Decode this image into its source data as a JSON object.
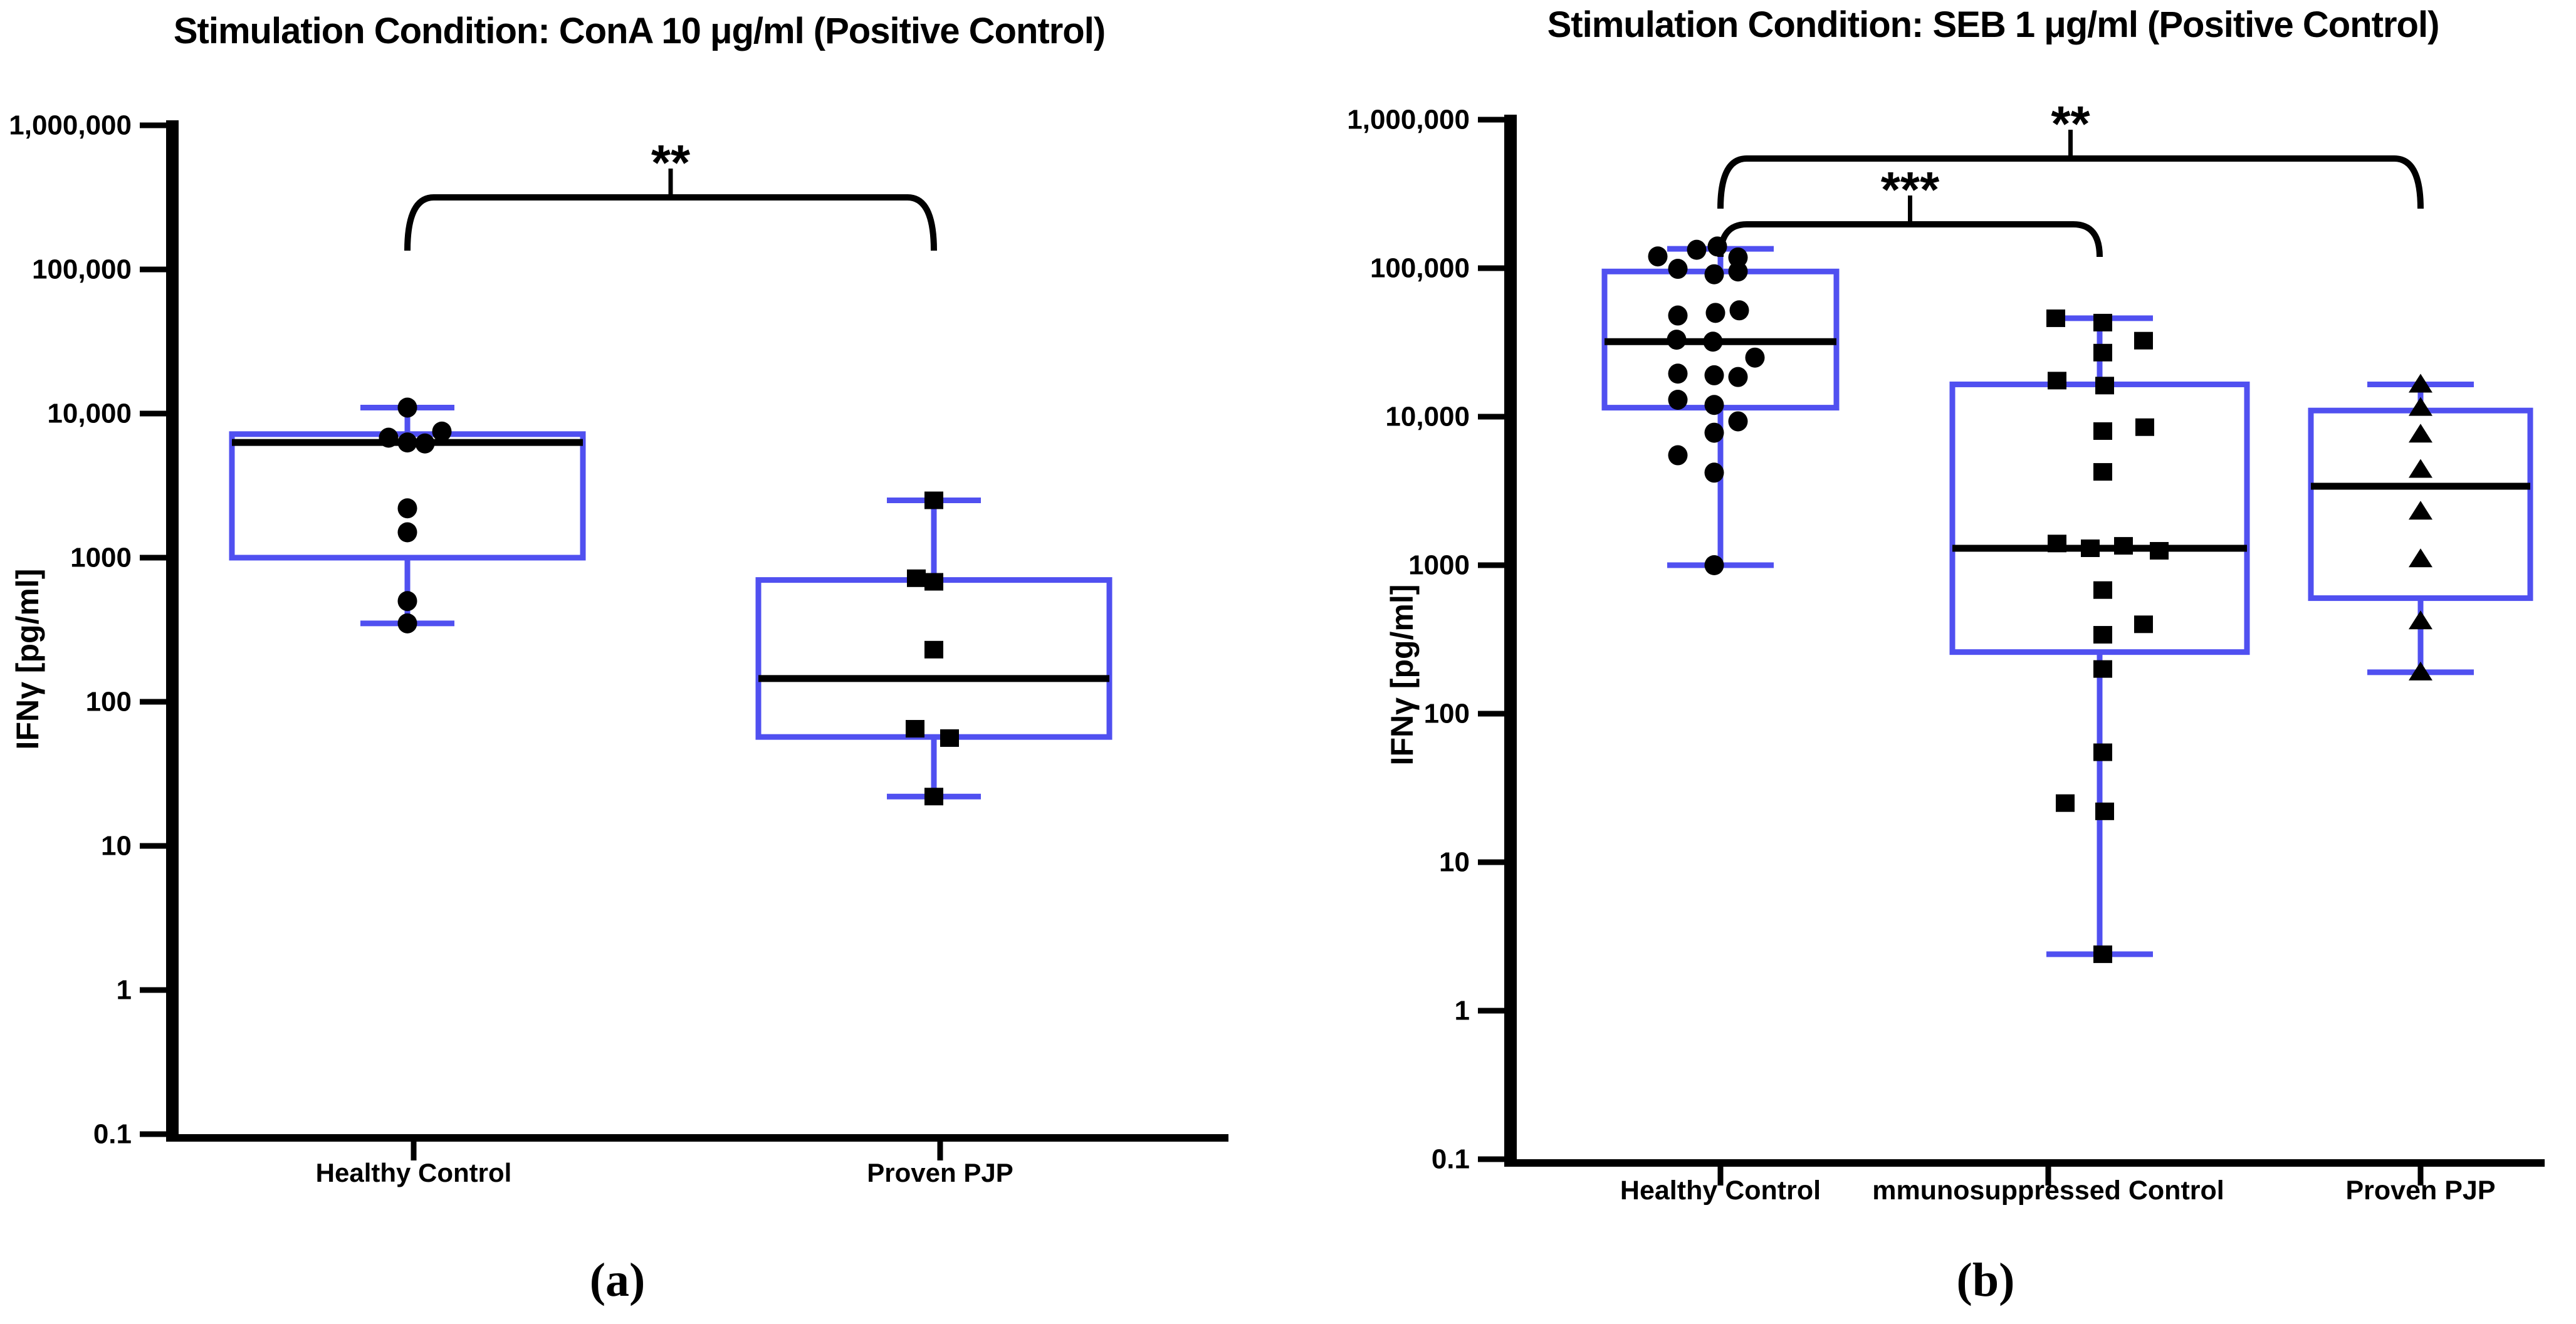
{
  "figure": {
    "background": "#ffffff",
    "box_color": "#5050F0",
    "ink_color": "#000000",
    "caption_a": "(a)",
    "caption_b": "(b)"
  },
  "chart_data": [
    {
      "type": "box",
      "panel": "a",
      "title": "Stimulation Condition: ConA 10 μg/ml (Positive Control)",
      "ylabel": "IFNγ [pg/ml]",
      "caption": "(a)",
      "y_scale": "log",
      "ylim": [
        0.1,
        1000000
      ],
      "grid": false,
      "yticks": [
        {
          "value": 1000000,
          "label": "1,000,000"
        },
        {
          "value": 100000,
          "label": "100,000"
        },
        {
          "value": 10000,
          "label": "10,000"
        },
        {
          "value": 1000,
          "label": "1000"
        },
        {
          "value": 100,
          "label": "100"
        },
        {
          "value": 10,
          "label": "10"
        },
        {
          "value": 1,
          "label": "1"
        },
        {
          "value": 0.1,
          "label": "0.1"
        }
      ],
      "groups": [
        {
          "label": "Healthy Control",
          "marker": "circle",
          "box": {
            "whisker_low": 350,
            "q1": 1000,
            "median": 6300,
            "q3": 7200,
            "whisker_high": 11000
          },
          "points": [
            {
              "v": 11000,
              "dx": 0
            },
            {
              "v": 7500,
              "dx": 55
            },
            {
              "v": 6800,
              "dx": -30
            },
            {
              "v": 6300,
              "dx": 0
            },
            {
              "v": 6200,
              "dx": 28
            },
            {
              "v": 2200,
              "dx": 0
            },
            {
              "v": 1500,
              "dx": 0
            },
            {
              "v": 500,
              "dx": 0
            },
            {
              "v": 350,
              "dx": 0
            }
          ]
        },
        {
          "label": "Proven PJP",
          "marker": "square",
          "box": {
            "whisker_low": 22,
            "q1": 57,
            "median": 145,
            "q3": 700,
            "whisker_high": 2500
          },
          "points": [
            {
              "v": 2500,
              "dx": 0
            },
            {
              "v": 720,
              "dx": -28
            },
            {
              "v": 680,
              "dx": 0
            },
            {
              "v": 230,
              "dx": 0
            },
            {
              "v": 65,
              "dx": -30
            },
            {
              "v": 56,
              "dx": 25
            },
            {
              "v": 22,
              "dx": 0
            }
          ]
        }
      ],
      "significance": [
        {
          "group_from": 0,
          "group_to": 1,
          "label": "**",
          "level": 0
        }
      ]
    },
    {
      "type": "box",
      "panel": "b",
      "title": "Stimulation Condition: SEB 1 μg/ml (Positive Control)",
      "ylabel": "IFNγ [pg/ml]",
      "caption": "(b)",
      "y_scale": "log",
      "ylim": [
        0.1,
        1000000
      ],
      "grid": false,
      "yticks": [
        {
          "value": 1000000,
          "label": "1,000,000"
        },
        {
          "value": 100000,
          "label": "100,000"
        },
        {
          "value": 10000,
          "label": "10,000"
        },
        {
          "value": 1000,
          "label": "1000"
        },
        {
          "value": 100,
          "label": "100"
        },
        {
          "value": 10,
          "label": "10"
        },
        {
          "value": 1,
          "label": "1"
        },
        {
          "value": 0.1,
          "label": "0.1"
        }
      ],
      "groups": [
        {
          "label": "Healthy Control",
          "marker": "circle",
          "box": {
            "whisker_low": 1000,
            "q1": 11500,
            "median": 32000,
            "q3": 95000,
            "whisker_high": 135000
          },
          "points": [
            {
              "v": 140000,
              "dx": -5
            },
            {
              "v": 133000,
              "dx": -38
            },
            {
              "v": 120000,
              "dx": -100
            },
            {
              "v": 118000,
              "dx": 28
            },
            {
              "v": 99000,
              "dx": -68
            },
            {
              "v": 95000,
              "dx": 28
            },
            {
              "v": 91000,
              "dx": -10
            },
            {
              "v": 52000,
              "dx": 30
            },
            {
              "v": 50000,
              "dx": -8
            },
            {
              "v": 48000,
              "dx": -68
            },
            {
              "v": 33000,
              "dx": -70
            },
            {
              "v": 32000,
              "dx": -12
            },
            {
              "v": 25000,
              "dx": 55
            },
            {
              "v": 19500,
              "dx": -68
            },
            {
              "v": 19000,
              "dx": -10
            },
            {
              "v": 18500,
              "dx": 28
            },
            {
              "v": 13000,
              "dx": -68
            },
            {
              "v": 12000,
              "dx": -10
            },
            {
              "v": 9300,
              "dx": 28
            },
            {
              "v": 7800,
              "dx": -10
            },
            {
              "v": 5500,
              "dx": -68
            },
            {
              "v": 4200,
              "dx": -10
            },
            {
              "v": 1000,
              "dx": -10
            }
          ]
        },
        {
          "label": "mmunosuppressed Control",
          "marker": "square",
          "box": {
            "whisker_low": 2.4,
            "q1": 260,
            "median": 1300,
            "q3": 16500,
            "whisker_high": 46000
          },
          "points": [
            {
              "v": 46000,
              "dx": -70
            },
            {
              "v": 43000,
              "dx": 5
            },
            {
              "v": 32500,
              "dx": 70
            },
            {
              "v": 27000,
              "dx": 5
            },
            {
              "v": 17500,
              "dx": -68
            },
            {
              "v": 16200,
              "dx": 8
            },
            {
              "v": 8500,
              "dx": 72
            },
            {
              "v": 8000,
              "dx": 5
            },
            {
              "v": 4250,
              "dx": 5
            },
            {
              "v": 1400,
              "dx": -68
            },
            {
              "v": 1350,
              "dx": 38
            },
            {
              "v": 1300,
              "dx": -15
            },
            {
              "v": 1250,
              "dx": 95
            },
            {
              "v": 680,
              "dx": 5
            },
            {
              "v": 400,
              "dx": 70
            },
            {
              "v": 340,
              "dx": 5
            },
            {
              "v": 200,
              "dx": 5
            },
            {
              "v": 55,
              "dx": 5
            },
            {
              "v": 25,
              "dx": -55
            },
            {
              "v": 22,
              "dx": 8
            },
            {
              "v": 2.4,
              "dx": 5
            }
          ]
        },
        {
          "label": "Proven PJP",
          "marker": "triangle",
          "box": {
            "whisker_low": 190,
            "q1": 600,
            "median": 3400,
            "q3": 11000,
            "whisker_high": 16500
          },
          "points": [
            {
              "v": 16500,
              "dx": 0
            },
            {
              "v": 11500,
              "dx": 0
            },
            {
              "v": 7600,
              "dx": 0
            },
            {
              "v": 4400,
              "dx": 0
            },
            {
              "v": 2300,
              "dx": 0
            },
            {
              "v": 1100,
              "dx": 0
            },
            {
              "v": 420,
              "dx": 0
            },
            {
              "v": 190,
              "dx": 0
            }
          ]
        }
      ],
      "significance": [
        {
          "group_from": 0,
          "group_to": 2,
          "label": "**",
          "level": 0
        },
        {
          "group_from": 0,
          "group_to": 1,
          "label": "***",
          "level": 1
        }
      ]
    }
  ]
}
